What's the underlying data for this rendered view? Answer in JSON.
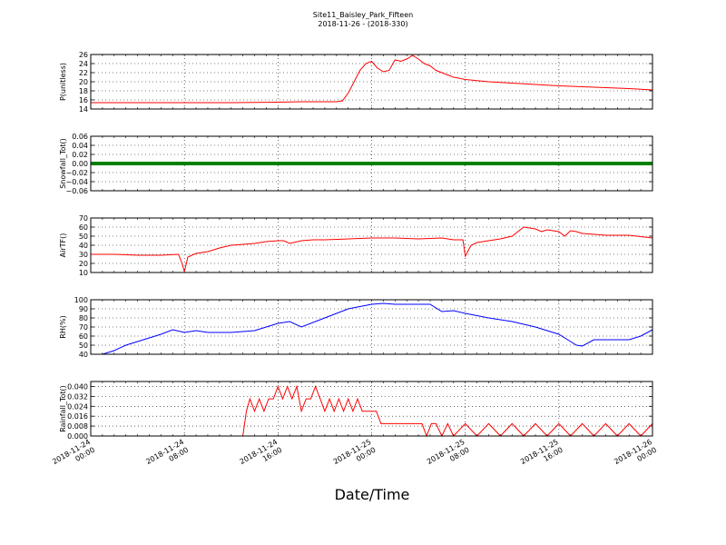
{
  "title": "Site11_Baisley_Park_Fifteen",
  "subtitle": "2018-11-26 - (2018-330)",
  "xlabel": "Date/Time",
  "x_ticks": [
    {
      "line1": "2018-11-24",
      "line2": "00:00",
      "hour": 0
    },
    {
      "line1": "2018-11-24",
      "line2": "08:00",
      "hour": 8
    },
    {
      "line1": "2018-11-24",
      "line2": "16:00",
      "hour": 16
    },
    {
      "line1": "2018-11-25",
      "line2": "00:00",
      "hour": 24
    },
    {
      "line1": "2018-11-25",
      "line2": "08:00",
      "hour": 32
    },
    {
      "line1": "2018-11-25",
      "line2": "16:00",
      "hour": 40
    },
    {
      "line1": "2018-11-26",
      "line2": "00:00",
      "hour": 48
    }
  ],
  "chart_data": [
    {
      "type": "line",
      "ylabel": "P(unitless)",
      "ylim": [
        14,
        26
      ],
      "yticks": [
        "14",
        "16",
        "18",
        "20",
        "22",
        "24",
        "26"
      ],
      "ytick_values": [
        14,
        16,
        18,
        20,
        22,
        24,
        26
      ],
      "grid": true,
      "color": "#ff0000",
      "series": [
        {
          "x": [
            0,
            4,
            8,
            12,
            16,
            18,
            20,
            21,
            21.5,
            22,
            22.5,
            23,
            23.5,
            24,
            24.5,
            25,
            25.5,
            26,
            26.5,
            27,
            27.5,
            28,
            28.5,
            29,
            29.5,
            30,
            31,
            32,
            34,
            36,
            38,
            40,
            42,
            44,
            46,
            48
          ],
          "y": [
            15.4,
            15.4,
            15.4,
            15.4,
            15.5,
            15.6,
            15.6,
            15.6,
            15.8,
            17.5,
            20,
            22.5,
            24,
            24.5,
            23,
            22.2,
            22.5,
            24.8,
            24.5,
            25,
            25.8,
            25,
            24,
            23.5,
            22.5,
            22,
            21,
            20.5,
            20,
            19.7,
            19.4,
            19.1,
            18.9,
            18.7,
            18.5,
            18.2
          ]
        }
      ]
    },
    {
      "type": "line",
      "ylabel": "Snowfall_Tot()",
      "ylim": [
        -0.06,
        0.06
      ],
      "yticks": [
        "−0.06",
        "−0.04",
        "−0.02",
        "0.00",
        "0.02",
        "0.04",
        "0.06"
      ],
      "ytick_values": [
        -0.06,
        -0.04,
        -0.02,
        0,
        0.02,
        0.04,
        0.06
      ],
      "grid": true,
      "color": "#008000",
      "series": [
        {
          "x": [
            0,
            48
          ],
          "y": [
            0,
            0
          ]
        }
      ]
    },
    {
      "type": "line",
      "ylabel": "AirTF()",
      "ylim": [
        10,
        70
      ],
      "yticks": [
        "10",
        "20",
        "30",
        "40",
        "50",
        "60",
        "70"
      ],
      "ytick_values": [
        10,
        20,
        30,
        40,
        50,
        60,
        70
      ],
      "grid": true,
      "color": "#ff0000",
      "series": [
        {
          "x": [
            0,
            2,
            4,
            6,
            7.5,
            7.8,
            8,
            8.3,
            9,
            10,
            11,
            12,
            13,
            14,
            15,
            16,
            16.5,
            17,
            18,
            19,
            20,
            22,
            24,
            26,
            28,
            30,
            31,
            31.8,
            32,
            32.5,
            33,
            34,
            35,
            36,
            36.5,
            37,
            38,
            38.5,
            39,
            39.5,
            40,
            40.5,
            41,
            41.5,
            42,
            44,
            46,
            48
          ],
          "y": [
            30,
            30,
            29,
            29,
            30,
            20,
            11,
            27,
            31,
            33,
            37,
            40,
            41,
            42,
            44,
            45,
            45,
            42,
            45,
            46,
            46,
            47,
            48,
            48,
            47,
            48,
            46,
            46,
            28,
            40,
            43,
            45,
            47,
            50,
            55,
            60,
            58,
            55,
            57,
            56,
            55,
            50,
            56,
            55,
            53,
            51,
            51,
            48
          ]
        }
      ]
    },
    {
      "type": "line",
      "ylabel": "RH(%)",
      "ylim": [
        40,
        100
      ],
      "yticks": [
        "40",
        "50",
        "60",
        "70",
        "80",
        "90",
        "100"
      ],
      "ytick_values": [
        40,
        50,
        60,
        70,
        80,
        90,
        100
      ],
      "grid": true,
      "color": "#0000ff",
      "series": [
        {
          "x": [
            0,
            1,
            2,
            3,
            4,
            5,
            6,
            7,
            8,
            9,
            10,
            12,
            14,
            16,
            17,
            18,
            20,
            22,
            24,
            25,
            26,
            27,
            28,
            29,
            30,
            31,
            32,
            34,
            36,
            38,
            40,
            41,
            41.5,
            42,
            43,
            44,
            45,
            46,
            47,
            48
          ],
          "y": [
            40,
            40,
            44,
            50,
            54,
            58,
            62,
            67,
            64,
            66,
            64,
            64,
            66,
            74,
            76,
            70,
            80,
            90,
            95,
            96,
            95,
            95,
            95,
            95,
            87,
            88,
            85,
            80,
            76,
            70,
            62,
            54,
            50,
            49,
            56,
            56,
            56,
            56,
            60,
            67
          ]
        }
      ]
    },
    {
      "type": "line",
      "ylabel": "Rainfall_Tot()",
      "ylim": [
        0,
        0.044
      ],
      "yticks": [
        "0.000",
        "0.008",
        "0.016",
        "0.024",
        "0.032",
        "0.040"
      ],
      "ytick_values": [
        0,
        0.008,
        0.016,
        0.024,
        0.032,
        0.04
      ],
      "grid": true,
      "color": "#ff0000",
      "series": [
        {
          "x": [
            0,
            13,
            13.3,
            13.6,
            14,
            14.4,
            14.8,
            15.2,
            15.6,
            16,
            16.4,
            16.8,
            17.2,
            17.6,
            18,
            18.4,
            18.8,
            19.2,
            19.6,
            20,
            20.4,
            20.8,
            21.2,
            21.6,
            22,
            22.4,
            22.8,
            23.2,
            23.6,
            24,
            24.4,
            24.8,
            25,
            25.5,
            26,
            27,
            28,
            28.3,
            28.7,
            29.1,
            29.5,
            30,
            30.5,
            31,
            32,
            33,
            34,
            35,
            36,
            37,
            38,
            39,
            40,
            41,
            42,
            43,
            44,
            45,
            46,
            47,
            48
          ],
          "y": [
            0,
            0,
            0.02,
            0.03,
            0.02,
            0.03,
            0.02,
            0.03,
            0.03,
            0.04,
            0.03,
            0.04,
            0.03,
            0.04,
            0.02,
            0.03,
            0.03,
            0.04,
            0.03,
            0.02,
            0.03,
            0.02,
            0.03,
            0.02,
            0.03,
            0.02,
            0.03,
            0.02,
            0.02,
            0.02,
            0.02,
            0.01,
            0.01,
            0.01,
            0.01,
            0.01,
            0.01,
            0.01,
            0,
            0.01,
            0.01,
            0,
            0.01,
            0,
            0.01,
            0,
            0.01,
            0,
            0.01,
            0,
            0.01,
            0,
            0.01,
            0,
            0.01,
            0,
            0.01,
            0,
            0.01,
            0,
            0.01
          ]
        }
      ]
    }
  ]
}
